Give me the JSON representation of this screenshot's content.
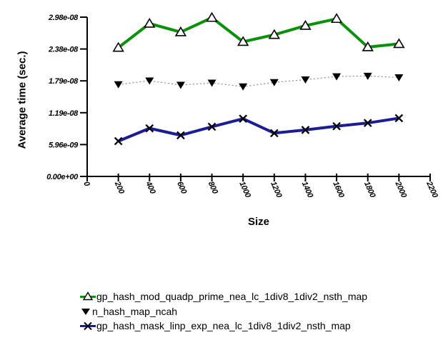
{
  "chart_data": {
    "type": "line",
    "title": "",
    "xlabel": "Size",
    "ylabel": "Average time (sec.)",
    "xlim": [
      0,
      2200.0
    ],
    "ylim": [
      0,
      2.98e-08
    ],
    "grid": false,
    "legend_position": "bottom-left",
    "x_ticks": [
      0,
      200,
      400,
      600,
      800,
      1000,
      1200,
      1400,
      1600,
      1800,
      2000,
      2200
    ],
    "x_tick_labels": [
      "0",
      "200",
      "400",
      "600",
      "800",
      "1000",
      "1200",
      "1400",
      "1600",
      "1800",
      "2000",
      "2200"
    ],
    "y_ticks": [
      {
        "value": 0,
        "label": "0.00e+00"
      },
      {
        "value": 5.96e-09,
        "label": "5.96e-09"
      },
      {
        "value": 1.192e-08,
        "label": "1.19e-08"
      },
      {
        "value": 1.788e-08,
        "label": "1.79e-08"
      },
      {
        "value": 2.384e-08,
        "label": "2.38e-08"
      },
      {
        "value": 2.98e-08,
        "label": "2.98e-08"
      }
    ],
    "x": [
      200,
      400,
      600,
      800,
      1000,
      1200,
      1400,
      1600,
      1800,
      2000
    ],
    "series": [
      {
        "name": "gp_hash_mod_quadp_prime_nea_lc_1div8_1div2_nsth_map",
        "line_color": "#0a910a",
        "line_width": 4,
        "line_dash": "solid",
        "marker": "triangle-up-open",
        "marker_fill": "#ffffff",
        "marker_stroke": "#000000",
        "values": [
          2.41e-08,
          2.86e-08,
          2.7e-08,
          2.97e-08,
          2.52e-08,
          2.65e-08,
          2.82e-08,
          2.95e-08,
          2.42e-08,
          2.48e-08
        ]
      },
      {
        "name": "n_hash_map_ncah",
        "line_color": "#8a8a8a",
        "line_width": 1.2,
        "line_dash": "dotted",
        "marker": "triangle-down-filled",
        "marker_fill": "#000000",
        "marker_stroke": "#000000",
        "values": [
          1.72e-08,
          1.79e-08,
          1.71e-08,
          1.75e-08,
          1.68e-08,
          1.76e-08,
          1.81e-08,
          1.87e-08,
          1.88e-08,
          1.85e-08
        ]
      },
      {
        "name": "gp_hash_mask_linp_exp_nea_lc_1div8_1div2_nsth_map",
        "line_color": "#1c1c94",
        "line_width": 4,
        "line_dash": "solid",
        "marker": "x",
        "marker_fill": "#000000",
        "marker_stroke": "#000000",
        "values": [
          6.6e-09,
          9e-09,
          7.7e-09,
          9.3e-09,
          1.08e-08,
          8.1e-09,
          8.7e-09,
          9.4e-09,
          1e-08,
          1.09e-08
        ]
      }
    ],
    "axis_color": "#000000"
  }
}
